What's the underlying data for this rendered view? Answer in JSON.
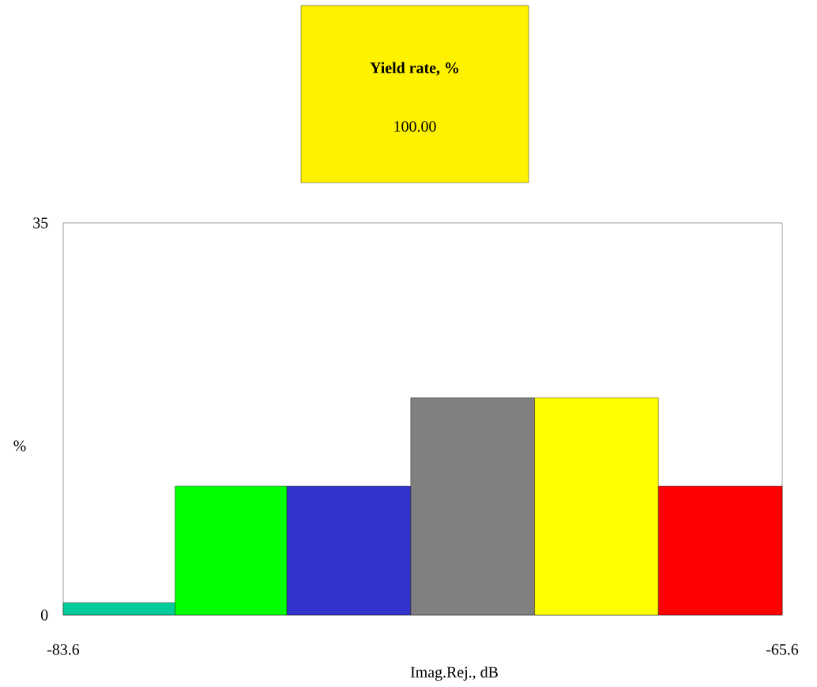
{
  "chart_data": {
    "type": "histogram",
    "xlabel": "Imag.Rej., dB",
    "ylabel": "%",
    "annotations": [
      "Yield rate, %",
      "100.00"
    ],
    "bins": [
      -83.6,
      -80.8,
      -78.0,
      -74.9,
      -71.8,
      -68.7,
      -65.6
    ],
    "values": [
      1.1,
      11.5,
      11.5,
      19.4,
      19.4,
      11.5
    ],
    "colors": [
      "#00cc99",
      "#00ff00",
      "#3333cc",
      "#808080",
      "#ffff00",
      "#ff0000"
    ],
    "xlim": [
      -83.6,
      -65.6
    ],
    "ylim": [
      0,
      35
    ],
    "xticks": [
      -83.6,
      -65.6
    ],
    "yticks": [
      0,
      35
    ]
  }
}
